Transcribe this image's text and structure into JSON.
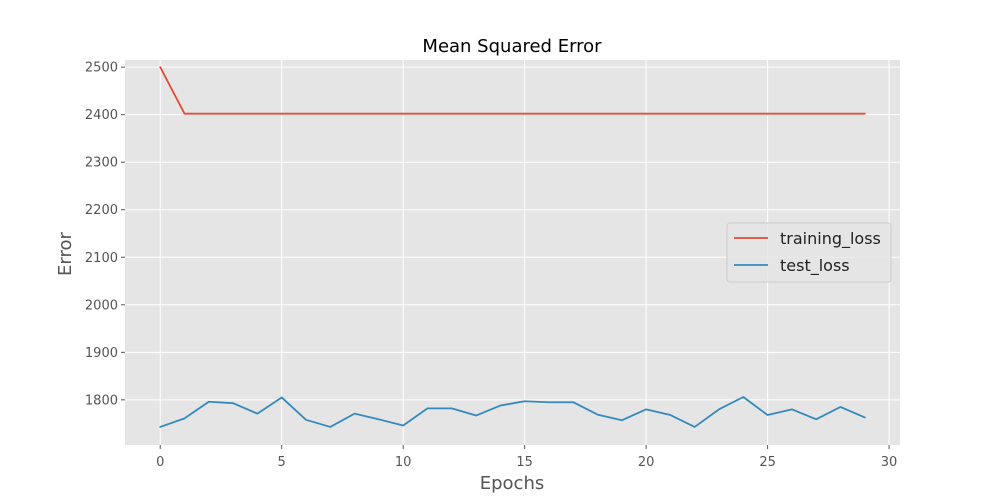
{
  "chart_data": {
    "type": "line",
    "title": "Mean Squared Error",
    "xlabel": "Epochs",
    "ylabel": "Error",
    "xlim": [
      -1.45,
      30.45
    ],
    "ylim": [
      1705,
      2515
    ],
    "xticks": [
      0,
      5,
      10,
      15,
      20,
      25,
      30
    ],
    "yticks": [
      1800,
      1900,
      2000,
      2100,
      2200,
      2300,
      2400,
      2500
    ],
    "grid": true,
    "legend_position": "center-right",
    "x": [
      0,
      1,
      2,
      3,
      4,
      5,
      6,
      7,
      8,
      9,
      10,
      11,
      12,
      13,
      14,
      15,
      16,
      17,
      18,
      19,
      20,
      21,
      22,
      23,
      24,
      25,
      26,
      27,
      28,
      29
    ],
    "series": [
      {
        "name": "training_loss",
        "color": "#E24A33",
        "values": [
          2500,
          2402,
          2402,
          2402,
          2402,
          2402,
          2402,
          2402,
          2402,
          2402,
          2402,
          2402,
          2402,
          2402,
          2402,
          2402,
          2402,
          2402,
          2402,
          2402,
          2402,
          2402,
          2402,
          2402,
          2402,
          2402,
          2402,
          2402,
          2402,
          2402
        ]
      },
      {
        "name": "test_loss",
        "color": "#348ABD",
        "values": [
          1743,
          1761,
          1796,
          1793,
          1771,
          1805,
          1758,
          1743,
          1771,
          1759,
          1746,
          1782,
          1782,
          1767,
          1788,
          1797,
          1795,
          1795,
          1769,
          1757,
          1780,
          1768,
          1743,
          1780,
          1806,
          1768,
          1780,
          1759,
          1785,
          1763
        ]
      }
    ],
    "style": {
      "plot_background": "#E5E5E5",
      "grid_color": "#FFFFFF",
      "text_color": "#555555",
      "title_color": "#000000"
    }
  }
}
